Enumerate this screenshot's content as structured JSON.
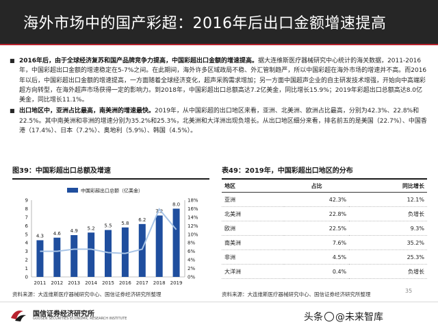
{
  "header": {
    "title": "海外市场中的国产彩超：2016年后出口金额增速提高"
  },
  "bullets": [
    {
      "lead": "2016年后，由于全球经济复苏和国产品牌竞争力提高，中国彩超出口金额的增速提高。",
      "body": "据大连维斯医疗器械研究中心统计的海关数据，2011-2016年，中国彩超出口金额的增速稳定在5-7%之间。在此期间，海外许多区域政局不稳、外汇管制趋严，所以中国彩超在海外市场的增速并不高。而2016年以后，中国彩超出口金额的增速提高，一方面随着全球经济变化，超声采购需求增加；另一方面中国超声企业的自主研发技术增强，开始向中高端彩超方向转型，在海外超声市场获得一定的影响力。到2018年，中国彩超出口总额高达7.2亿美金，同比增长15.9%；2019年彩超出口总额高达8.0亿美金，同比增长11.1%。"
    },
    {
      "lead": "出口地区中，亚洲占比最高，南美洲的增速最快。",
      "body": "2019年，从中国彩超的出口地区来看，亚洲、北美洲、欧洲占比最高，分别为42.3%、22.8%和22.5%。其中南美洲和非洲的增速分别为35.2%和25.3%，北美洲和大洋洲出现负增长。从出口地区细分来看，排名前五的是美国（22.7%）、中国香港（17.4%）、日本（7.2%）、奥地利（5.9%）、韩国（4.5%）。"
    }
  ],
  "chart_panel": {
    "title": "图39：中国彩超出口总额及增速",
    "source": "资料来源：大连维斯医疗器械研究中心、国信证券经济研究所整理"
  },
  "chart_data": {
    "type": "bar",
    "title": "图39：中国彩超出口总额及增速",
    "categories": [
      "2011",
      "2012",
      "2013",
      "2014",
      "2015",
      "2016",
      "2017",
      "2018",
      "2019"
    ],
    "series": [
      {
        "name": "中国彩超出口总额（亿美金）",
        "type": "bar",
        "axis": "left",
        "color": "#1f4e9e",
        "values": [
          4.3,
          4.6,
          4.9,
          5.2,
          5.5,
          5.8,
          6.2,
          7.2,
          8.0
        ]
      },
      {
        "name": "",
        "type": "line",
        "axis": "right",
        "color": "#a8c4e6",
        "values": [
          0.06,
          0.06,
          0.065,
          0.065,
          0.057,
          0.055,
          0.065,
          0.159,
          0.111
        ]
      }
    ],
    "ylim_left": [
      0,
      9
    ],
    "yticks_left": [
      "0",
      "1",
      "2",
      "3",
      "4",
      "5",
      "6",
      "7",
      "8",
      "9"
    ],
    "ylim_right": [
      0,
      0.18
    ],
    "yticks_right": [
      "0%",
      "2%",
      "4%",
      "6%",
      "8%",
      "10%",
      "12%",
      "14%",
      "16%",
      "18%"
    ],
    "data_labels": [
      "4.3",
      "4.6",
      "4.9",
      "5.2",
      "5.5",
      "5.8",
      "6.2",
      "7.2",
      "8.0"
    ],
    "legend": "top-center",
    "grid": false
  },
  "table_panel": {
    "title": "表49：2019年，中国彩超出口地区的分布",
    "headers": [
      "地区",
      "占比",
      "同比增长"
    ],
    "rows": [
      [
        "亚洲",
        "42.3%",
        "12.1%"
      ],
      [
        "北美洲",
        "22.8%",
        "负增长"
      ],
      [
        "欧洲",
        "22.5%",
        "9.3%"
      ],
      [
        "南美洲",
        "7.6%",
        "35.2%"
      ],
      [
        "非洲",
        "4.5%",
        "25.3%"
      ],
      [
        "大洋洲",
        "0.4%",
        "负增长"
      ]
    ],
    "source": "资料来源：大连维斯医疗器械研究中心、国信证券经济研究所整理"
  },
  "footer": {
    "org_cn": "国信证券经济研究所",
    "org_en": "GUOSEN SECURITIES ECONOMIC RESEARCH INSTITUTE",
    "page": "35",
    "watermark_prefix": "头条",
    "watermark_handle": "@未来智库"
  },
  "colors": {
    "title_bg": "#262626",
    "accent_red": "#b8232f",
    "bar_blue": "#1f4e9e",
    "line_blue": "#a8c4e6"
  }
}
